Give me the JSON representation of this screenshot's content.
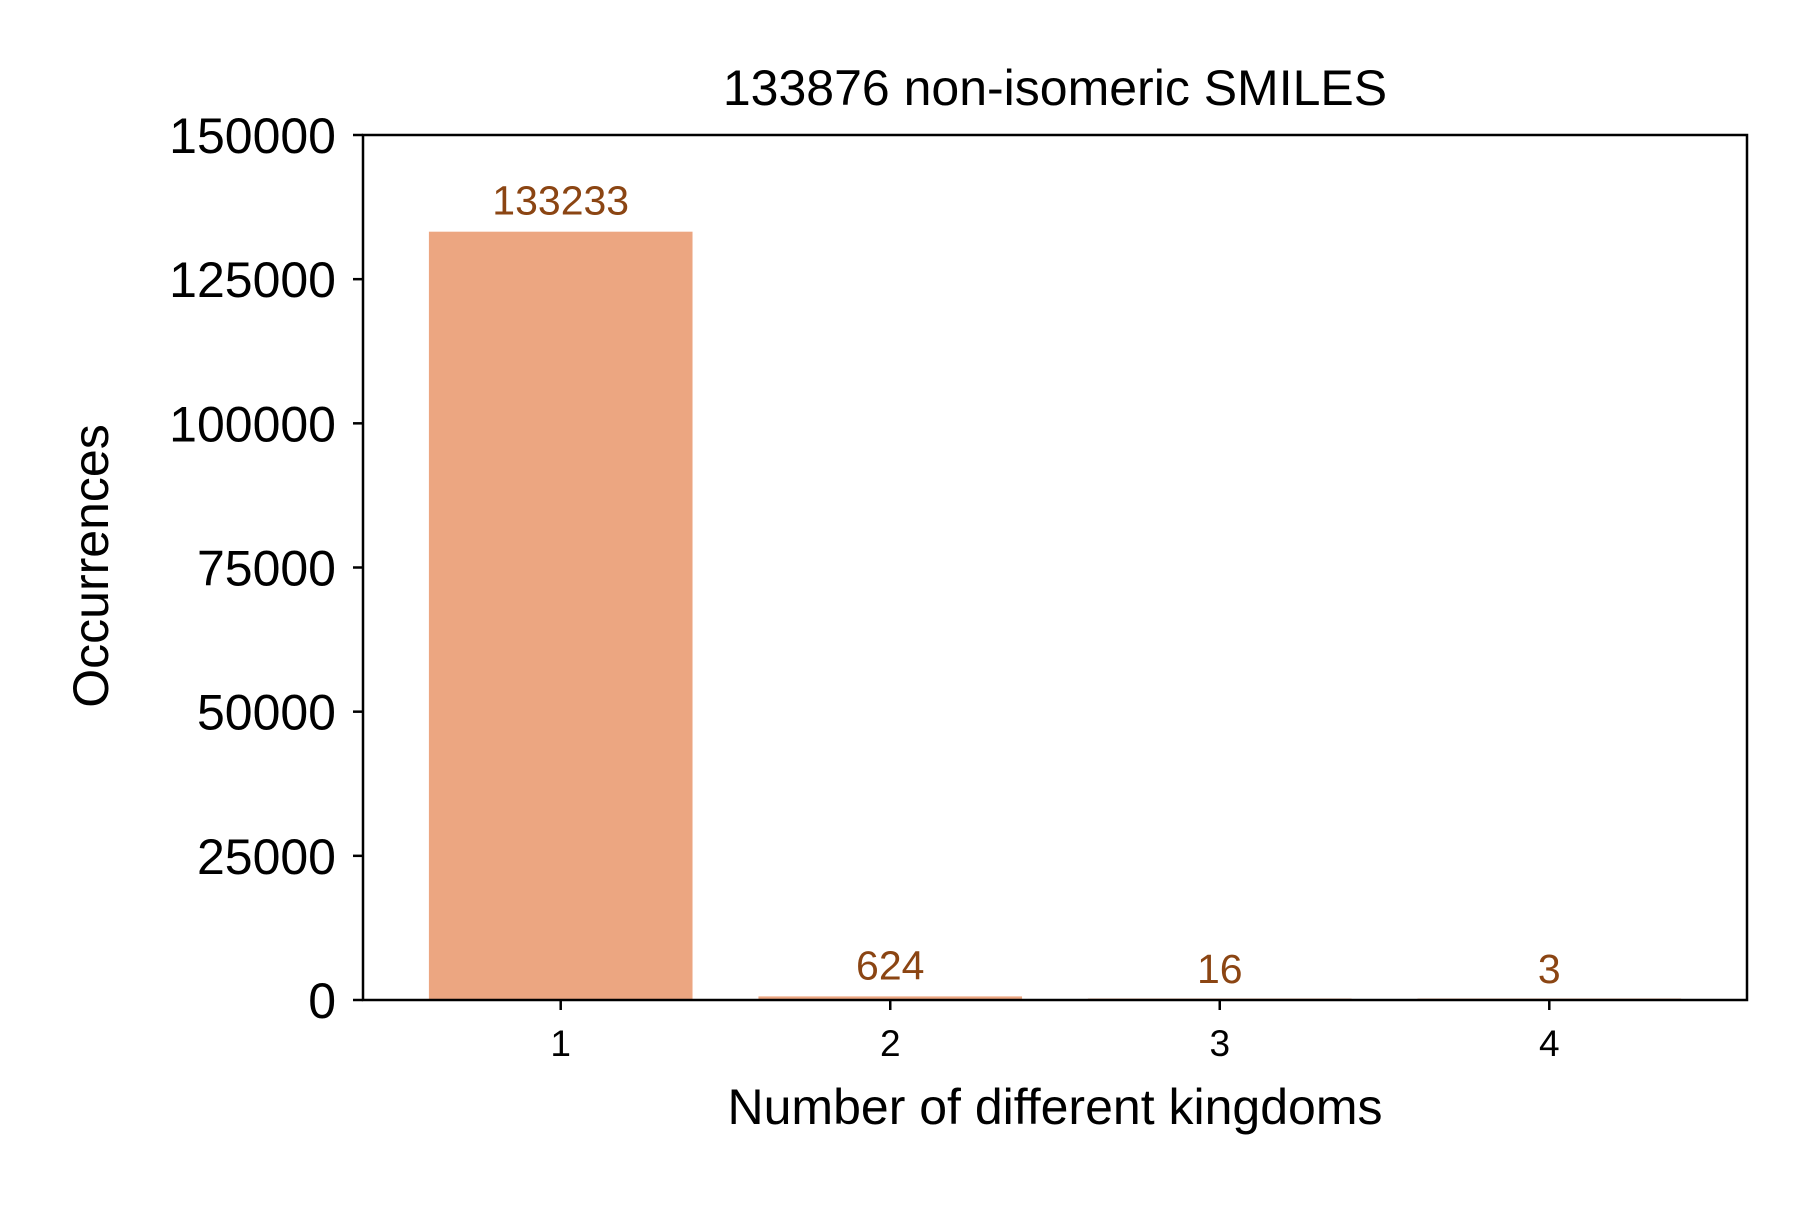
{
  "chart_data": {
    "type": "bar",
    "title": "133876 non-isomeric SMILES",
    "xlabel": "Number of different kingdoms",
    "ylabel": "Occurrences",
    "categories": [
      "1",
      "2",
      "3",
      "4"
    ],
    "values": [
      133233,
      624,
      16,
      3
    ],
    "data_labels": [
      "133233",
      "624",
      "16",
      "3"
    ],
    "ylim": [
      0,
      150000
    ],
    "yticks": [
      0,
      25000,
      50000,
      75000,
      100000,
      125000,
      150000
    ],
    "ytick_labels": [
      "0",
      "25000",
      "50000",
      "75000",
      "100000",
      "125000",
      "150000"
    ],
    "grid": false,
    "legend": "none",
    "colors": {
      "bar": "#eca681",
      "data_label": "#8b4513"
    }
  }
}
